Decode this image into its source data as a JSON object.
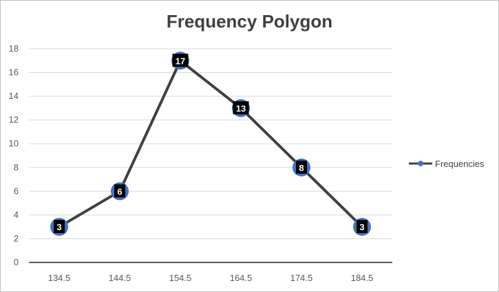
{
  "chart_data": {
    "type": "line",
    "title": "Frequency Polygon",
    "categories": [
      "134.5",
      "144.5",
      "154.5",
      "164.5",
      "174.5",
      "184.5"
    ],
    "series": [
      {
        "name": "Frequencies",
        "values": [
          3,
          6,
          17,
          13,
          8,
          3
        ]
      }
    ],
    "ylim": [
      0,
      18
    ],
    "yticks": [
      0,
      2,
      4,
      6,
      8,
      10,
      12,
      14,
      16,
      18
    ],
    "grid": true,
    "legend": "right",
    "data_labels": true,
    "colors": {
      "line": "#404040",
      "marker": "#4472c4",
      "label_bg": "#000000",
      "grid": "#d9d9d9",
      "axis": "#595959"
    }
  }
}
